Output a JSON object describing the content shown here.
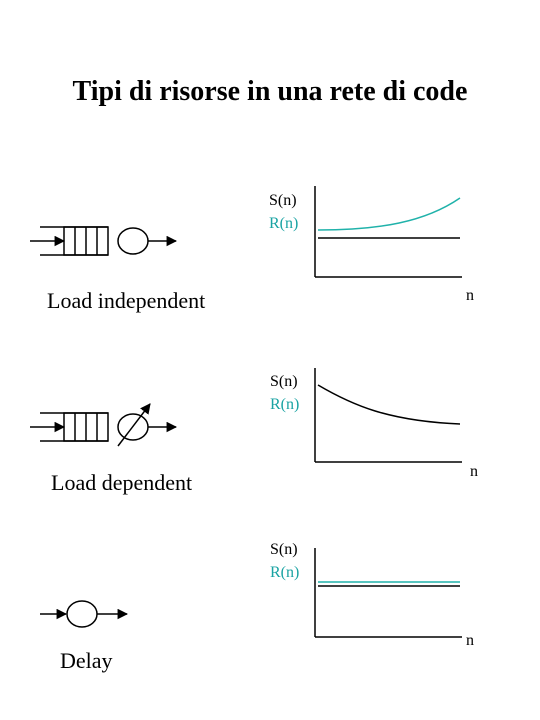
{
  "title": "Tipi di risorse in una rete di code",
  "colors": {
    "line": "#000000",
    "response_time": "#20b2aa",
    "response_label": "#1aa3a3"
  },
  "sections": [
    {
      "label": "Load independent",
      "s_label": "S(n)",
      "r_label": "R(n)",
      "x_label": "n"
    },
    {
      "label": "Load dependent",
      "s_label": "S(n)",
      "r_label": "R(n)",
      "x_label": "n"
    },
    {
      "label": "Delay",
      "s_label": "S(n)",
      "r_label": "R(n)",
      "x_label": "n"
    }
  ]
}
